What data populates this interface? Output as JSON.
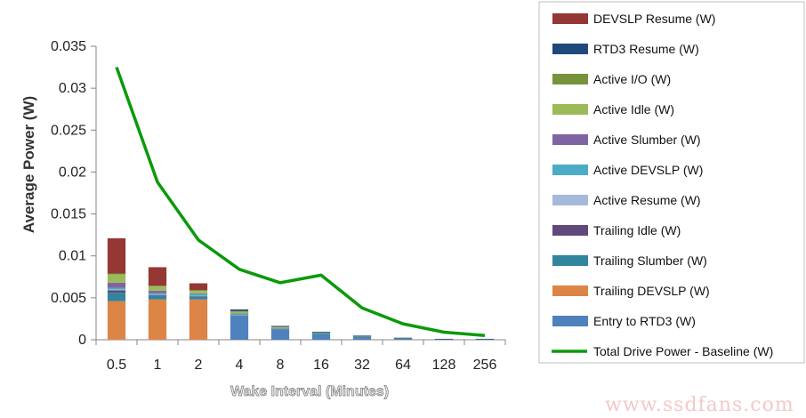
{
  "chart_data": {
    "type": "bar",
    "stacked": true,
    "categories": [
      "0.5",
      "1",
      "2",
      "4",
      "8",
      "16",
      "32",
      "64",
      "128",
      "256"
    ],
    "xlabel": "Wake Interval (Minutes)",
    "ylabel": "Average Power (W)",
    "ylim": [
      0,
      0.035
    ],
    "yticks": [
      0,
      0.005,
      0.01,
      0.015,
      0.02,
      0.025,
      0.03,
      0.035
    ],
    "ytick_labels": [
      "0",
      "0.005",
      "0.01",
      "0.015",
      "0.02",
      "0.025",
      "0.03",
      "0.035"
    ],
    "grid": false,
    "legend_position": "right",
    "series": [
      {
        "name": "Entry to RTD3 (W)",
        "color": "#4f81bd",
        "values": [
          0,
          0,
          0,
          0.0028,
          0.0012,
          0.0007,
          0.0004,
          0.0002,
          0.0001,
          0.0001
        ]
      },
      {
        "name": "Trailing DEVSLP  (W)",
        "color": "#dd8447",
        "values": [
          0.0046,
          0.0048,
          0.0048,
          0,
          0,
          0,
          0,
          0,
          0,
          0
        ]
      },
      {
        "name": "Trailing Slumber  (W)",
        "color": "#31859c",
        "values": [
          0.001,
          0.0004,
          0.0003,
          0.0001,
          0.0001,
          5e-05,
          2e-05,
          1e-05,
          0,
          0
        ]
      },
      {
        "name": "Trailing Idle (W)",
        "color": "#604a7b",
        "values": [
          0.0003,
          0.0001,
          0.0001,
          5e-05,
          2e-05,
          0,
          0,
          0,
          0,
          0
        ]
      },
      {
        "name": "Active Resume (W)",
        "color": "#a6b9dc",
        "values": [
          0.0001,
          5e-05,
          3e-05,
          2e-05,
          1e-05,
          0,
          0,
          0,
          0,
          0
        ]
      },
      {
        "name": "Active DEVSLP (W)",
        "color": "#4bacc6",
        "values": [
          0.0002,
          0.0002,
          0.0002,
          0.0001,
          5e-05,
          2e-05,
          0,
          0,
          0,
          0
        ]
      },
      {
        "name": "Active Slumber (W)",
        "color": "#8064a2",
        "values": [
          0.0006,
          0.0003,
          0.0001,
          5e-05,
          2e-05,
          0,
          0,
          0,
          0,
          0
        ]
      },
      {
        "name": "Active Idle (W)",
        "color": "#9bbb59",
        "values": [
          0.001,
          0.0005,
          0.0003,
          0.0002,
          0.0001,
          5e-05,
          2e-05,
          1e-05,
          0,
          0
        ]
      },
      {
        "name": "Active I/O (W)",
        "color": "#77933c",
        "values": [
          0.0001,
          0.0001,
          0.0001,
          0.0001,
          5e-05,
          2e-05,
          1e-05,
          0,
          0,
          0
        ]
      },
      {
        "name": "RTD3 Resume (W)",
        "color": "#1f497d",
        "values": [
          0,
          0,
          0,
          0.0002,
          0.0001,
          0.0001,
          5e-05,
          2e-05,
          1e-05,
          1e-05
        ]
      },
      {
        "name": "DEVSLP Resume (W)",
        "color": "#953735",
        "values": [
          0.0042,
          0.0022,
          0.0008,
          0,
          0,
          0,
          0,
          0,
          0,
          0
        ]
      }
    ],
    "line": {
      "name": "Total Drive Power - Baseline (W)",
      "color": "#0a9a0a",
      "values": [
        0.0325,
        0.0188,
        0.0119,
        0.0084,
        0.0068,
        0.0077,
        0.0038,
        0.0019,
        0.0009,
        0.0005
      ]
    },
    "legend_order": [
      "DEVSLP Resume (W)",
      "RTD3 Resume (W)",
      "Active I/O (W)",
      "Active Idle (W)",
      "Active Slumber (W)",
      "Active DEVSLP (W)",
      "Active Resume (W)",
      "Trailing Idle (W)",
      "Trailing Slumber  (W)",
      "Trailing DEVSLP  (W)",
      "Entry to RTD3 (W)",
      "Total Drive Power - Baseline (W)"
    ]
  },
  "watermark": "www.ssdfans.com"
}
